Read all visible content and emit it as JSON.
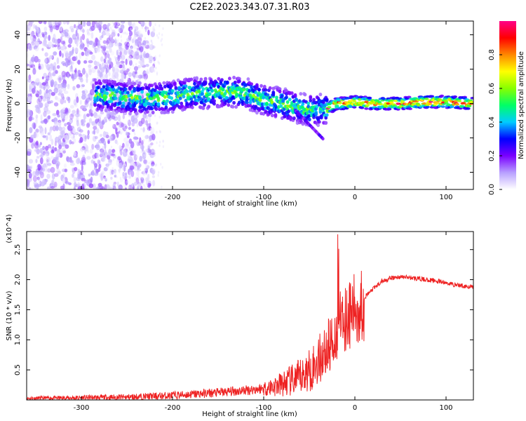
{
  "title": "C2E2.2023.343.07.31.R03",
  "colors": {
    "snr_line": "#ee2222",
    "colormap": [
      "#ffffff",
      "#b8a0ff",
      "#7a00ff",
      "#0000ff",
      "#00ccff",
      "#00ff66",
      "#88ff00",
      "#ffff00",
      "#ff8800",
      "#ff0000",
      "#ff0088"
    ]
  },
  "chart_data": [
    {
      "type": "heatmap",
      "xlabel": "Height of straight line (km)",
      "ylabel": "Frequency (Hz)",
      "xlim": [
        -360,
        130
      ],
      "ylim": [
        -50,
        48
      ],
      "xticks": [
        -300,
        -200,
        -100,
        0,
        100
      ],
      "yticks": [
        -40,
        -20,
        0,
        20,
        40
      ],
      "colorbar": {
        "label": "Normalized spectral amplitude",
        "range": [
          0,
          1
        ],
        "ticks": [
          0.0,
          0.2,
          0.4,
          0.6,
          0.8
        ]
      },
      "grid": false,
      "ridge": {
        "x": [
          -270,
          -250,
          -220,
          -200,
          -180,
          -160,
          -140,
          -120,
          -100,
          -80,
          -60,
          -45,
          -30,
          -20,
          -10,
          0,
          20,
          50,
          80,
          100,
          130
        ],
        "y": [
          5,
          3,
          3,
          4,
          6,
          6,
          7,
          6,
          2,
          0,
          -3,
          -4,
          -3,
          0,
          0,
          1,
          0,
          0,
          1,
          1,
          0
        ]
      }
    },
    {
      "type": "line",
      "xlabel": "Height of straight line (km)",
      "ylabel": "SNR (10 * v/v)",
      "y_multiplier": "(x10^4)",
      "xlim": [
        -360,
        130
      ],
      "ylim": [
        0,
        2.8
      ],
      "xticks": [
        -300,
        -200,
        -100,
        0,
        100
      ],
      "yticks": [
        0.5,
        1.0,
        1.5,
        2.0,
        2.5
      ],
      "grid": false,
      "series": [
        {
          "x": [
            -360,
            -300,
            -250,
            -200,
            -150,
            -120,
            -100,
            -80,
            -60,
            -45,
            -35,
            -28,
            -22,
            -18,
            -15,
            -10,
            -5,
            0,
            5,
            10,
            20,
            30,
            40,
            50,
            60,
            70,
            80,
            90,
            100,
            110,
            120,
            130
          ],
          "y": [
            0.03,
            0.04,
            0.05,
            0.08,
            0.13,
            0.17,
            0.2,
            0.28,
            0.4,
            0.6,
            0.8,
            0.95,
            1.1,
            1.25,
            1.35,
            1.45,
            1.5,
            1.55,
            1.6,
            1.7,
            1.85,
            1.98,
            2.03,
            2.05,
            2.04,
            2.02,
            2.0,
            1.98,
            1.95,
            1.92,
            1.9,
            1.88
          ]
        }
      ]
    }
  ]
}
